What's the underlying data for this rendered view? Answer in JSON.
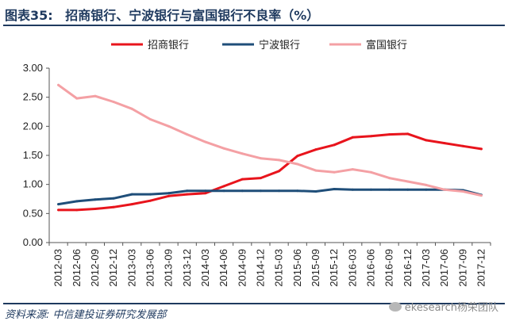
{
  "header": {
    "figure_label": "图表35:",
    "title": "招商银行、宁波银行与富国银行不良率（%）"
  },
  "footer": {
    "source": "资料来源: 中信建投证券研究发展部",
    "watermark": "ekesearch杨荣团队"
  },
  "chart_data": {
    "type": "line",
    "x": [
      "2012-03",
      "2012-06",
      "2012-09",
      "2012-12",
      "2013-03",
      "2013-06",
      "2013-09",
      "2013-12",
      "2014-03",
      "2014-06",
      "2014-09",
      "2014-12",
      "2015-03",
      "2015-06",
      "2015-09",
      "2015-12",
      "2016-03",
      "2016-06",
      "2016-09",
      "2016-12",
      "2017-03",
      "2017-06",
      "2017-09",
      "2017-12"
    ],
    "ylim": [
      0,
      3.0
    ],
    "yticks": [
      "0.00",
      "0.50",
      "1.00",
      "1.50",
      "2.00",
      "2.50",
      "3.00"
    ],
    "legend_position": "top",
    "series": [
      {
        "name": "招商银行",
        "color": "#e8141c",
        "values": [
          0.56,
          0.56,
          0.58,
          0.61,
          0.66,
          0.72,
          0.8,
          0.83,
          0.85,
          0.97,
          1.09,
          1.11,
          1.23,
          1.49,
          1.6,
          1.68,
          1.81,
          1.83,
          1.86,
          1.87,
          1.76,
          1.71,
          1.66,
          1.61
        ]
      },
      {
        "name": "宁波银行",
        "color": "#1f4e79",
        "values": [
          0.66,
          0.71,
          0.74,
          0.76,
          0.83,
          0.83,
          0.85,
          0.89,
          0.89,
          0.89,
          0.89,
          0.89,
          0.89,
          0.89,
          0.88,
          0.92,
          0.91,
          0.91,
          0.91,
          0.91,
          0.91,
          0.91,
          0.9,
          0.82
        ]
      },
      {
        "name": "富国银行",
        "color": "#f4a0a4",
        "values": [
          2.71,
          2.48,
          2.52,
          2.42,
          2.3,
          2.12,
          2.0,
          1.86,
          1.73,
          1.62,
          1.53,
          1.45,
          1.42,
          1.35,
          1.24,
          1.21,
          1.26,
          1.21,
          1.11,
          1.05,
          0.99,
          0.91,
          0.88,
          0.81
        ]
      }
    ]
  }
}
